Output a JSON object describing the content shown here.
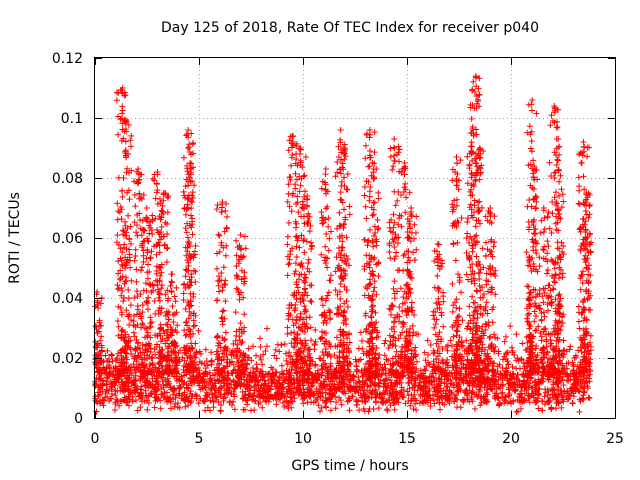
{
  "chart_data": {
    "type": "scatter",
    "title": "Day 125 of 2018, Rate Of TEC Index for receiver p040",
    "xlabel": "GPS time / hours",
    "ylabel": "ROTI / TECUs",
    "xlim": [
      0,
      25
    ],
    "ylim": [
      0,
      0.12
    ],
    "x_ticks": [
      0,
      5,
      10,
      15,
      20,
      25
    ],
    "x_tick_labels": [
      "0",
      "5",
      "10",
      "15",
      "20",
      "25"
    ],
    "y_ticks": [
      0,
      0.02,
      0.04,
      0.06,
      0.08,
      0.1,
      0.12
    ],
    "y_tick_labels": [
      "0",
      "0.02",
      "0.04",
      "0.06",
      "0.08",
      "0.1",
      "0.12"
    ],
    "grid": true,
    "marker": "+",
    "color": "#ff0000",
    "series": [
      {
        "name": "ROTI",
        "x_range": [
          0,
          23.8
        ],
        "baseline_band": [
          0.005,
          0.015
        ],
        "peaks": [
          {
            "x": 0.1,
            "y": 0.042
          },
          {
            "x": 1.3,
            "y": 0.11
          },
          {
            "x": 1.5,
            "y": 0.099
          },
          {
            "x": 2.1,
            "y": 0.083
          },
          {
            "x": 2.5,
            "y": 0.07
          },
          {
            "x": 3.0,
            "y": 0.082
          },
          {
            "x": 3.3,
            "y": 0.075
          },
          {
            "x": 3.7,
            "y": 0.048
          },
          {
            "x": 4.5,
            "y": 0.096
          },
          {
            "x": 4.6,
            "y": 0.085
          },
          {
            "x": 6.1,
            "y": 0.072
          },
          {
            "x": 7.0,
            "y": 0.061
          },
          {
            "x": 9.5,
            "y": 0.094
          },
          {
            "x": 9.9,
            "y": 0.09
          },
          {
            "x": 10.2,
            "y": 0.074
          },
          {
            "x": 11.1,
            "y": 0.083
          },
          {
            "x": 11.8,
            "y": 0.096
          },
          {
            "x": 12.0,
            "y": 0.09
          },
          {
            "x": 13.2,
            "y": 0.096
          },
          {
            "x": 13.4,
            "y": 0.083
          },
          {
            "x": 14.4,
            "y": 0.093
          },
          {
            "x": 14.9,
            "y": 0.085
          },
          {
            "x": 15.2,
            "y": 0.07
          },
          {
            "x": 16.5,
            "y": 0.058
          },
          {
            "x": 17.4,
            "y": 0.087
          },
          {
            "x": 18.1,
            "y": 0.095
          },
          {
            "x": 18.3,
            "y": 0.114
          },
          {
            "x": 18.5,
            "y": 0.09
          },
          {
            "x": 19.0,
            "y": 0.07
          },
          {
            "x": 21.0,
            "y": 0.106
          },
          {
            "x": 21.1,
            "y": 0.084
          },
          {
            "x": 21.6,
            "y": 0.07
          },
          {
            "x": 22.1,
            "y": 0.104
          },
          {
            "x": 22.3,
            "y": 0.093
          },
          {
            "x": 23.5,
            "y": 0.092
          },
          {
            "x": 23.6,
            "y": 0.075
          }
        ]
      }
    ]
  }
}
